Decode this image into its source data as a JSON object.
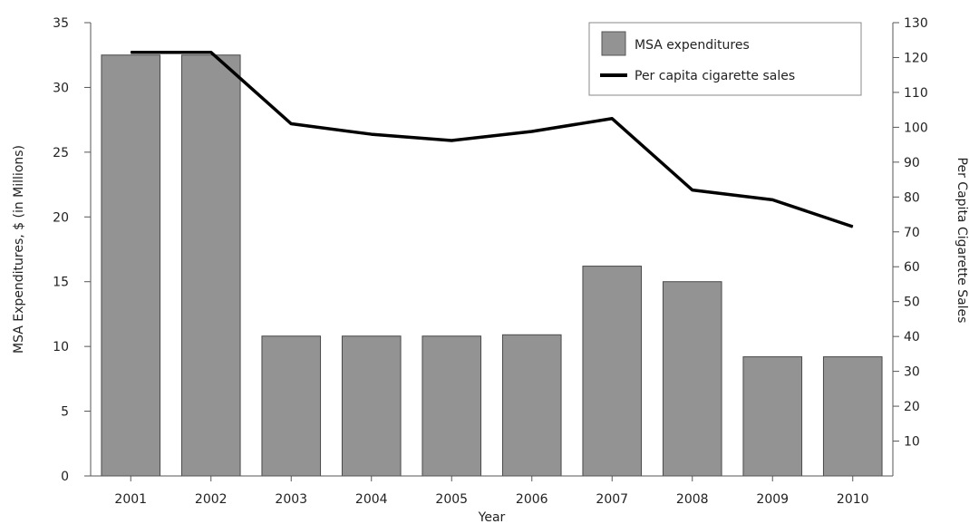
{
  "chart_data": {
    "type": "bar",
    "categories": [
      "2001",
      "2002",
      "2003",
      "2004",
      "2005",
      "2006",
      "2007",
      "2008",
      "2009",
      "2010"
    ],
    "series": [
      {
        "name": "MSA expenditures",
        "type": "bar",
        "axis": "left",
        "color": "#939393",
        "values": [
          32.5,
          32.5,
          10.8,
          10.8,
          10.8,
          10.9,
          16.2,
          15.0,
          9.2,
          9.2
        ]
      },
      {
        "name": "Per capita cigarette sales",
        "type": "line",
        "axis": "right",
        "color": "#000000",
        "values": [
          121.5,
          121.5,
          101,
          98,
          96.2,
          98.8,
          102.5,
          82,
          79.2,
          71.5
        ]
      }
    ],
    "xlabel": "Year",
    "ylabel": "MSA Expenditures, $ (in Millions)",
    "y2label": "Per Capita Cigarette Sales",
    "ylim": [
      0,
      35
    ],
    "yticks": [
      "0",
      "5",
      "10",
      "15",
      "20",
      "25",
      "30",
      "35"
    ],
    "y2lim": [
      0,
      130
    ],
    "y2ticks": [
      "10",
      "20",
      "30",
      "40",
      "50",
      "60",
      "70",
      "80",
      "90",
      "100",
      "110",
      "120",
      "130"
    ],
    "grid": false,
    "legend": "top-right"
  }
}
